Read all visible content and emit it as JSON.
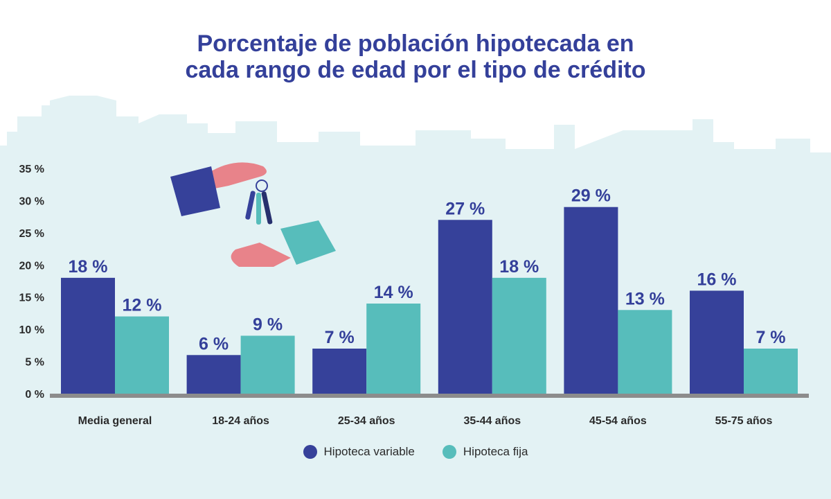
{
  "chart_data": {
    "type": "bar",
    "title_lines": [
      "Porcentaje de población hipotecada en",
      "cada rango de edad por el tipo de crédito"
    ],
    "categories": [
      "Media general",
      "18-24 años",
      "25-34 años",
      "35-44 años",
      "45-54 años",
      "55-75 años"
    ],
    "series": [
      {
        "name": "Hipoteca variable",
        "color": "#36419a",
        "values": [
          18,
          6,
          7,
          27,
          29,
          16
        ],
        "labels": [
          "18 %",
          "6 %",
          "7 %",
          "27 %",
          "29 %",
          "16 %"
        ]
      },
      {
        "name": "Hipoteca fija",
        "color": "#57bdbb",
        "values": [
          12,
          9,
          14,
          18,
          13,
          7
        ],
        "labels": [
          "12 %",
          "9 %",
          "14 %",
          "18 %",
          "13 %",
          "7 %"
        ]
      }
    ],
    "yticks": [
      "0 %",
      "5 %",
      "10 %",
      "15 %",
      "20 %",
      "25 %",
      "30 %",
      "35 %"
    ],
    "ylim": [
      0,
      35
    ],
    "grid": false,
    "legend_position": "bottom"
  }
}
